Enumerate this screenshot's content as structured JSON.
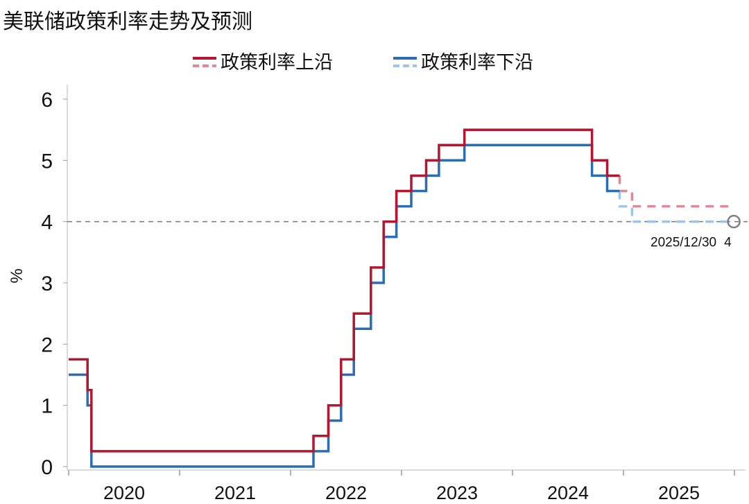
{
  "chart_data": {
    "type": "line",
    "title": "美联储政策利率走势及预测",
    "ylabel": "%",
    "xlabel": "",
    "ylim": [
      0,
      6
    ],
    "yticks": [
      "0",
      "1",
      "2",
      "3",
      "4",
      "5",
      "6"
    ],
    "xlim": [
      "2020-01-01",
      "2026-01-01"
    ],
    "xticks": [
      "2020",
      "2021",
      "2022",
      "2023",
      "2024",
      "2025"
    ],
    "reference_line": {
      "y": 4,
      "style": "dashed",
      "color": "#7f7f7f"
    },
    "legend_position": "top-center",
    "legend": [
      "政策利率上沿",
      "政策利率下沿"
    ],
    "series": [
      {
        "name": "政策利率上沿",
        "color": "#b5162f",
        "forecast_color": "#dd8a97",
        "steps": [
          [
            "2020-01-01",
            1.75
          ],
          [
            "2020-03-03",
            1.25
          ],
          [
            "2020-03-16",
            0.25
          ],
          [
            "2022-03-17",
            0.5
          ],
          [
            "2022-05-05",
            1.0
          ],
          [
            "2022-06-16",
            1.75
          ],
          [
            "2022-07-28",
            2.5
          ],
          [
            "2022-09-22",
            3.25
          ],
          [
            "2022-11-03",
            4.0
          ],
          [
            "2022-12-15",
            4.5
          ],
          [
            "2023-02-02",
            4.75
          ],
          [
            "2023-03-23",
            5.0
          ],
          [
            "2023-05-04",
            5.25
          ],
          [
            "2023-07-27",
            5.5
          ],
          [
            "2024-09-19",
            5.0
          ],
          [
            "2024-11-08",
            4.75
          ]
        ],
        "actual_end": "2024-12-19",
        "forecast_steps": [
          [
            "2024-12-19",
            4.5
          ],
          [
            "2025-01-29",
            4.25
          ]
        ],
        "forecast_end": "2025-12-30"
      },
      {
        "name": "政策利率下沿",
        "color": "#2a6db5",
        "forecast_color": "#9fc4e8",
        "steps": [
          [
            "2020-01-01",
            1.5
          ],
          [
            "2020-03-03",
            1.0
          ],
          [
            "2020-03-16",
            0.0
          ],
          [
            "2022-03-17",
            0.25
          ],
          [
            "2022-05-05",
            0.75
          ],
          [
            "2022-06-16",
            1.5
          ],
          [
            "2022-07-28",
            2.25
          ],
          [
            "2022-09-22",
            3.0
          ],
          [
            "2022-11-03",
            3.75
          ],
          [
            "2022-12-15",
            4.25
          ],
          [
            "2023-02-02",
            4.5
          ],
          [
            "2023-03-23",
            4.75
          ],
          [
            "2023-05-04",
            5.0
          ],
          [
            "2023-07-27",
            5.25
          ],
          [
            "2024-09-19",
            4.75
          ],
          [
            "2024-11-08",
            4.5
          ]
        ],
        "actual_end": "2024-12-19",
        "forecast_steps": [
          [
            "2024-12-19",
            4.25
          ],
          [
            "2025-01-29",
            4.0
          ]
        ],
        "forecast_end": "2025-12-30"
      }
    ],
    "annotation": {
      "date_label": "2025/12/30",
      "value_label": "4",
      "date": "2025-12-30",
      "value": 4
    }
  }
}
